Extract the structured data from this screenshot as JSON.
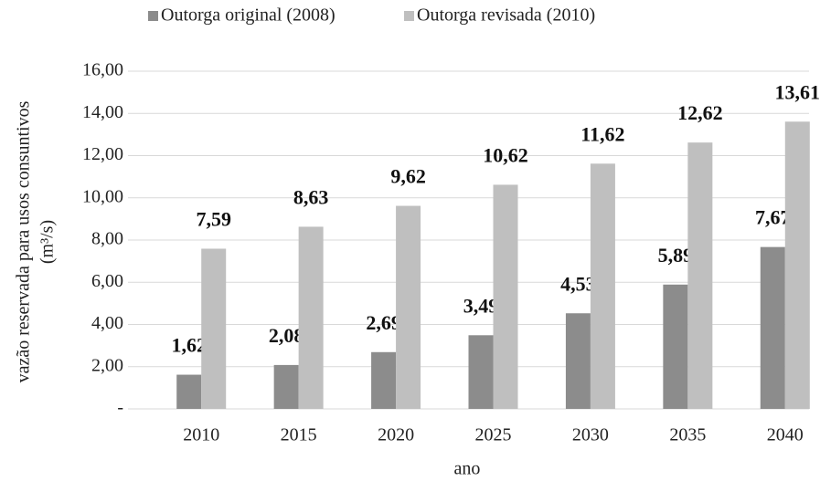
{
  "chart_data": {
    "type": "bar",
    "xlabel": "ano",
    "ylabel": [
      "vazão reservada para usos consuntivos",
      "(m³/s)"
    ],
    "categories": [
      "2010",
      "2015",
      "2020",
      "2025",
      "2030",
      "2035",
      "2040"
    ],
    "series": [
      {
        "name": "Outorga original (2008)",
        "color": "#8c8c8c",
        "values": [
          1.62,
          2.08,
          2.69,
          3.49,
          4.53,
          5.89,
          7.67
        ],
        "value_labels": [
          "1,62",
          "2,08",
          "2,69",
          "3,49",
          "4,53",
          "5,89",
          "7,67"
        ]
      },
      {
        "name": "Outorga revisada (2010)",
        "color": "#bfbfbf",
        "values": [
          7.59,
          8.63,
          9.62,
          10.62,
          11.62,
          12.62,
          13.61
        ],
        "value_labels": [
          "7,59",
          "8,63",
          "9,62",
          "10,62",
          "11,62",
          "12,62",
          "13,61"
        ]
      }
    ],
    "ylim": [
      0,
      16
    ],
    "yticks": [
      {
        "value": 0,
        "label": "-"
      },
      {
        "value": 2,
        "label": "2,00"
      },
      {
        "value": 4,
        "label": "4,00"
      },
      {
        "value": 6,
        "label": "6,00"
      },
      {
        "value": 8,
        "label": "8,00"
      },
      {
        "value": 10,
        "label": "10,00"
      },
      {
        "value": 12,
        "label": "12,00"
      },
      {
        "value": 14,
        "label": "14,00"
      },
      {
        "value": 16,
        "label": "16,00"
      }
    ],
    "grid": true,
    "legend": "top"
  }
}
